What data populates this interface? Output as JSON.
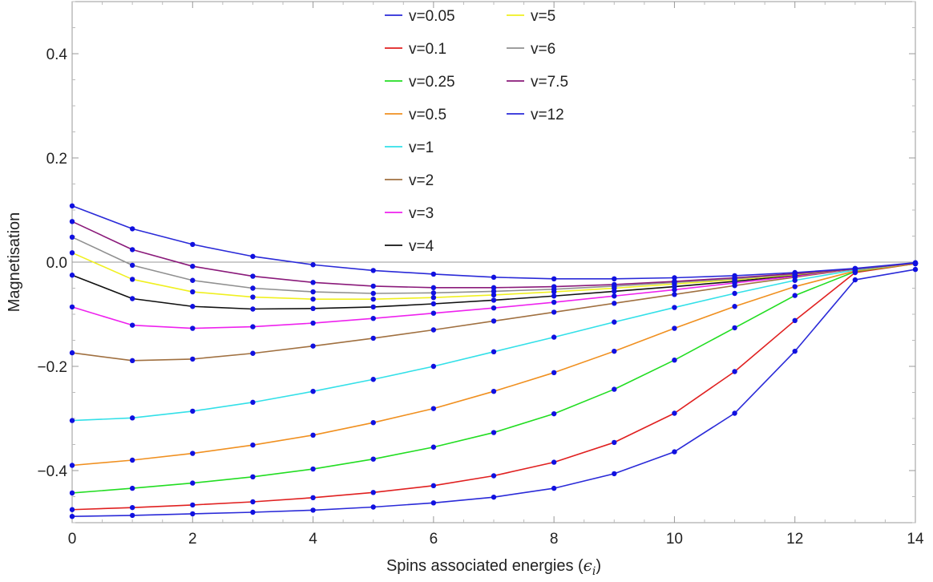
{
  "chart_data": {
    "type": "line",
    "title": "",
    "xlabel": "Spins associated energies (",
    "xlabel_symbol": "ϵ",
    "xlabel_subscript": "i",
    "xlabel_close": ")",
    "ylabel": "Magnetisation",
    "xlim": [
      0,
      14
    ],
    "ylim": [
      -0.5,
      0.5
    ],
    "x_ticks": [
      0,
      2,
      4,
      6,
      8,
      10,
      12,
      14
    ],
    "y_ticks": [
      -0.4,
      -0.2,
      0.0,
      0.2,
      0.4
    ],
    "x_tick_labels": [
      "0",
      "2",
      "4",
      "6",
      "8",
      "10",
      "12",
      "14"
    ],
    "y_tick_labels": [
      "−0.4",
      "−0.2",
      "0.0",
      "0.2",
      "0.4"
    ],
    "grid": false,
    "legend_position": "top-center",
    "marker_color": "#1010e0",
    "x": [
      0,
      1,
      2,
      3,
      4,
      5,
      6,
      7,
      8,
      9,
      10,
      11,
      12,
      13,
      14
    ],
    "series": [
      {
        "name": "v=0.05",
        "color": "#2a2ad8",
        "values": [
          -0.488,
          -0.486,
          -0.483,
          -0.48,
          -0.476,
          -0.47,
          -0.462,
          -0.451,
          -0.434,
          -0.406,
          -0.364,
          -0.29,
          -0.171,
          -0.034,
          -0.014
        ]
      },
      {
        "name": "v=0.1",
        "color": "#e02020",
        "values": [
          -0.475,
          -0.471,
          -0.466,
          -0.46,
          -0.452,
          -0.442,
          -0.429,
          -0.41,
          -0.384,
          -0.346,
          -0.29,
          -0.21,
          -0.112,
          -0.02,
          -0.003
        ]
      },
      {
        "name": "v=0.25",
        "color": "#22dd22",
        "values": [
          -0.443,
          -0.434,
          -0.424,
          -0.412,
          -0.397,
          -0.378,
          -0.355,
          -0.327,
          -0.291,
          -0.244,
          -0.188,
          -0.126,
          -0.064,
          -0.018,
          -0.003
        ]
      },
      {
        "name": "v=0.5",
        "color": "#f09020",
        "values": [
          -0.39,
          -0.38,
          -0.367,
          -0.351,
          -0.332,
          -0.308,
          -0.281,
          -0.248,
          -0.212,
          -0.171,
          -0.127,
          -0.085,
          -0.047,
          -0.017,
          -0.003
        ]
      },
      {
        "name": "v=1",
        "color": "#33e0e8",
        "values": [
          -0.304,
          -0.299,
          -0.286,
          -0.269,
          -0.248,
          -0.225,
          -0.2,
          -0.172,
          -0.144,
          -0.115,
          -0.087,
          -0.06,
          -0.035,
          -0.015,
          -0.002
        ]
      },
      {
        "name": "v=2",
        "color": "#a07040",
        "values": [
          -0.174,
          -0.189,
          -0.186,
          -0.175,
          -0.161,
          -0.146,
          -0.13,
          -0.113,
          -0.096,
          -0.079,
          -0.062,
          -0.045,
          -0.029,
          -0.013,
          -0.002
        ]
      },
      {
        "name": "v=3",
        "color": "#ee22ee",
        "values": [
          -0.086,
          -0.121,
          -0.127,
          -0.124,
          -0.117,
          -0.108,
          -0.098,
          -0.088,
          -0.077,
          -0.065,
          -0.053,
          -0.04,
          -0.027,
          -0.013,
          -0.002
        ]
      },
      {
        "name": "v=4",
        "color": "#111111",
        "values": [
          -0.025,
          -0.07,
          -0.085,
          -0.09,
          -0.089,
          -0.086,
          -0.08,
          -0.073,
          -0.065,
          -0.056,
          -0.047,
          -0.037,
          -0.025,
          -0.013,
          -0.002
        ]
      },
      {
        "name": "v=5",
        "color": "#f0f020",
        "values": [
          0.018,
          -0.033,
          -0.057,
          -0.067,
          -0.071,
          -0.071,
          -0.068,
          -0.063,
          -0.057,
          -0.05,
          -0.042,
          -0.034,
          -0.024,
          -0.013,
          -0.002
        ]
      },
      {
        "name": "v=6",
        "color": "#909090",
        "values": [
          0.048,
          -0.006,
          -0.035,
          -0.05,
          -0.057,
          -0.06,
          -0.059,
          -0.056,
          -0.052,
          -0.046,
          -0.039,
          -0.032,
          -0.023,
          -0.013,
          -0.002
        ]
      },
      {
        "name": "v=7.5",
        "color": "#8a1a7a",
        "values": [
          0.078,
          0.024,
          -0.008,
          -0.027,
          -0.039,
          -0.046,
          -0.049,
          -0.049,
          -0.047,
          -0.043,
          -0.037,
          -0.03,
          -0.022,
          -0.013,
          -0.002
        ]
      },
      {
        "name": "v=12",
        "color": "#2a2ad8",
        "values": [
          0.108,
          0.064,
          0.034,
          0.011,
          -0.005,
          -0.016,
          -0.023,
          -0.029,
          -0.032,
          -0.032,
          -0.03,
          -0.026,
          -0.02,
          -0.012,
          -0.001
        ]
      }
    ]
  }
}
